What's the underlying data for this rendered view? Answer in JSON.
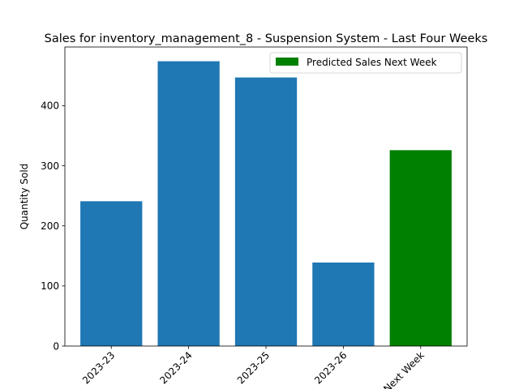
{
  "chart_data": {
    "type": "bar",
    "title": "Sales for inventory_management_8 - Suspension System - Last Four Weeks",
    "xlabel": "",
    "ylabel": "Quantity Sold",
    "categories": [
      "2023-23",
      "2023-24",
      "2023-25",
      "2023-26",
      "Next Week"
    ],
    "values": [
      241,
      474,
      447,
      139,
      326
    ],
    "bar_colors": [
      "#1f77b4",
      "#1f77b4",
      "#1f77b4",
      "#1f77b4",
      "#008000"
    ],
    "yticks": [
      0,
      100,
      200,
      300,
      400
    ],
    "ylim": [
      0,
      497.7
    ],
    "legend": {
      "position": "top-right",
      "entries": [
        {
          "label": "Predicted Sales Next Week",
          "color": "#008000"
        }
      ]
    },
    "grid": false,
    "tick_rotation": 45
  }
}
